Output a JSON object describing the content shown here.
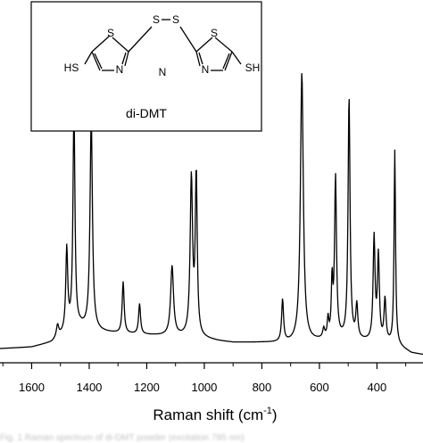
{
  "chart_data": {
    "type": "line",
    "xlabel_main": "Raman shift (cm",
    "xlabel_sup": "-1",
    "xlabel_end": ")",
    "ylabel": "",
    "x_reversed": true,
    "xlim": [
      1710,
      240
    ],
    "ylim": [
      0,
      1
    ],
    "x_ticks": [
      1600,
      1400,
      1200,
      1000,
      800,
      600,
      400
    ],
    "x_tick_labels": [
      "1600",
      "1400",
      "1200",
      "1000",
      "800",
      "600",
      "400"
    ],
    "grid": false,
    "baseline": [
      [
        1710,
        0.02
      ],
      [
        1600,
        0.025
      ],
      [
        1530,
        0.04
      ],
      [
        1500,
        0.06
      ],
      [
        1470,
        0.08
      ],
      [
        1430,
        0.09
      ],
      [
        1400,
        0.08
      ],
      [
        1360,
        0.075
      ],
      [
        1300,
        0.07
      ],
      [
        1200,
        0.065
      ],
      [
        1100,
        0.06
      ],
      [
        1060,
        0.058
      ],
      [
        1000,
        0.052
      ],
      [
        950,
        0.045
      ],
      [
        900,
        0.04
      ],
      [
        800,
        0.04
      ],
      [
        700,
        0.038
      ],
      [
        600,
        0.045
      ],
      [
        560,
        0.05
      ],
      [
        500,
        0.05
      ],
      [
        450,
        0.045
      ],
      [
        400,
        0.04
      ],
      [
        360,
        0.035
      ],
      [
        330,
        0.03
      ],
      [
        300,
        0.015
      ],
      [
        280,
        0.005
      ],
      [
        240,
        0.0
      ]
    ],
    "peaks": [
      {
        "x": 1510,
        "height": 0.04,
        "width": 5
      },
      {
        "x": 1478,
        "height": 0.27,
        "width": 4
      },
      {
        "x": 1453,
        "height": 0.73,
        "width": 4
      },
      {
        "x": 1393,
        "height": 0.7,
        "width": 5
      },
      {
        "x": 1282,
        "height": 0.17,
        "width": 4
      },
      {
        "x": 1225,
        "height": 0.1,
        "width": 4
      },
      {
        "x": 1112,
        "height": 0.23,
        "width": 6
      },
      {
        "x": 1045,
        "height": 0.52,
        "width": 5
      },
      {
        "x": 1028,
        "height": 0.53,
        "width": 4
      },
      {
        "x": 728,
        "height": 0.14,
        "width": 4
      },
      {
        "x": 585,
        "height": 0.03,
        "width": 4
      },
      {
        "x": 570,
        "height": 0.06,
        "width": 3
      },
      {
        "x": 556,
        "height": 0.18,
        "width": 3
      },
      {
        "x": 544,
        "height": 0.53,
        "width": 4
      },
      {
        "x": 497,
        "height": 0.8,
        "width": 4
      },
      {
        "x": 470,
        "height": 0.11,
        "width": 4
      },
      {
        "x": 410,
        "height": 0.34,
        "width": 4
      },
      {
        "x": 395,
        "height": 0.28,
        "width": 4
      },
      {
        "x": 372,
        "height": 0.14,
        "width": 4
      },
      {
        "x": 338,
        "height": 0.64,
        "width": 3
      }
    ],
    "broad_peaks": [
      {
        "x": 661,
        "height": 0.89,
        "width": 6
      }
    ]
  },
  "inset": {
    "compound_name": "di-DMT",
    "atom_S": "S",
    "atom_N": "N",
    "group_SH": "SH",
    "group_HS": "HS"
  },
  "caption_text": "Fig. 1 Raman spectrum of di-DMT powder (excitation 785 nm)"
}
